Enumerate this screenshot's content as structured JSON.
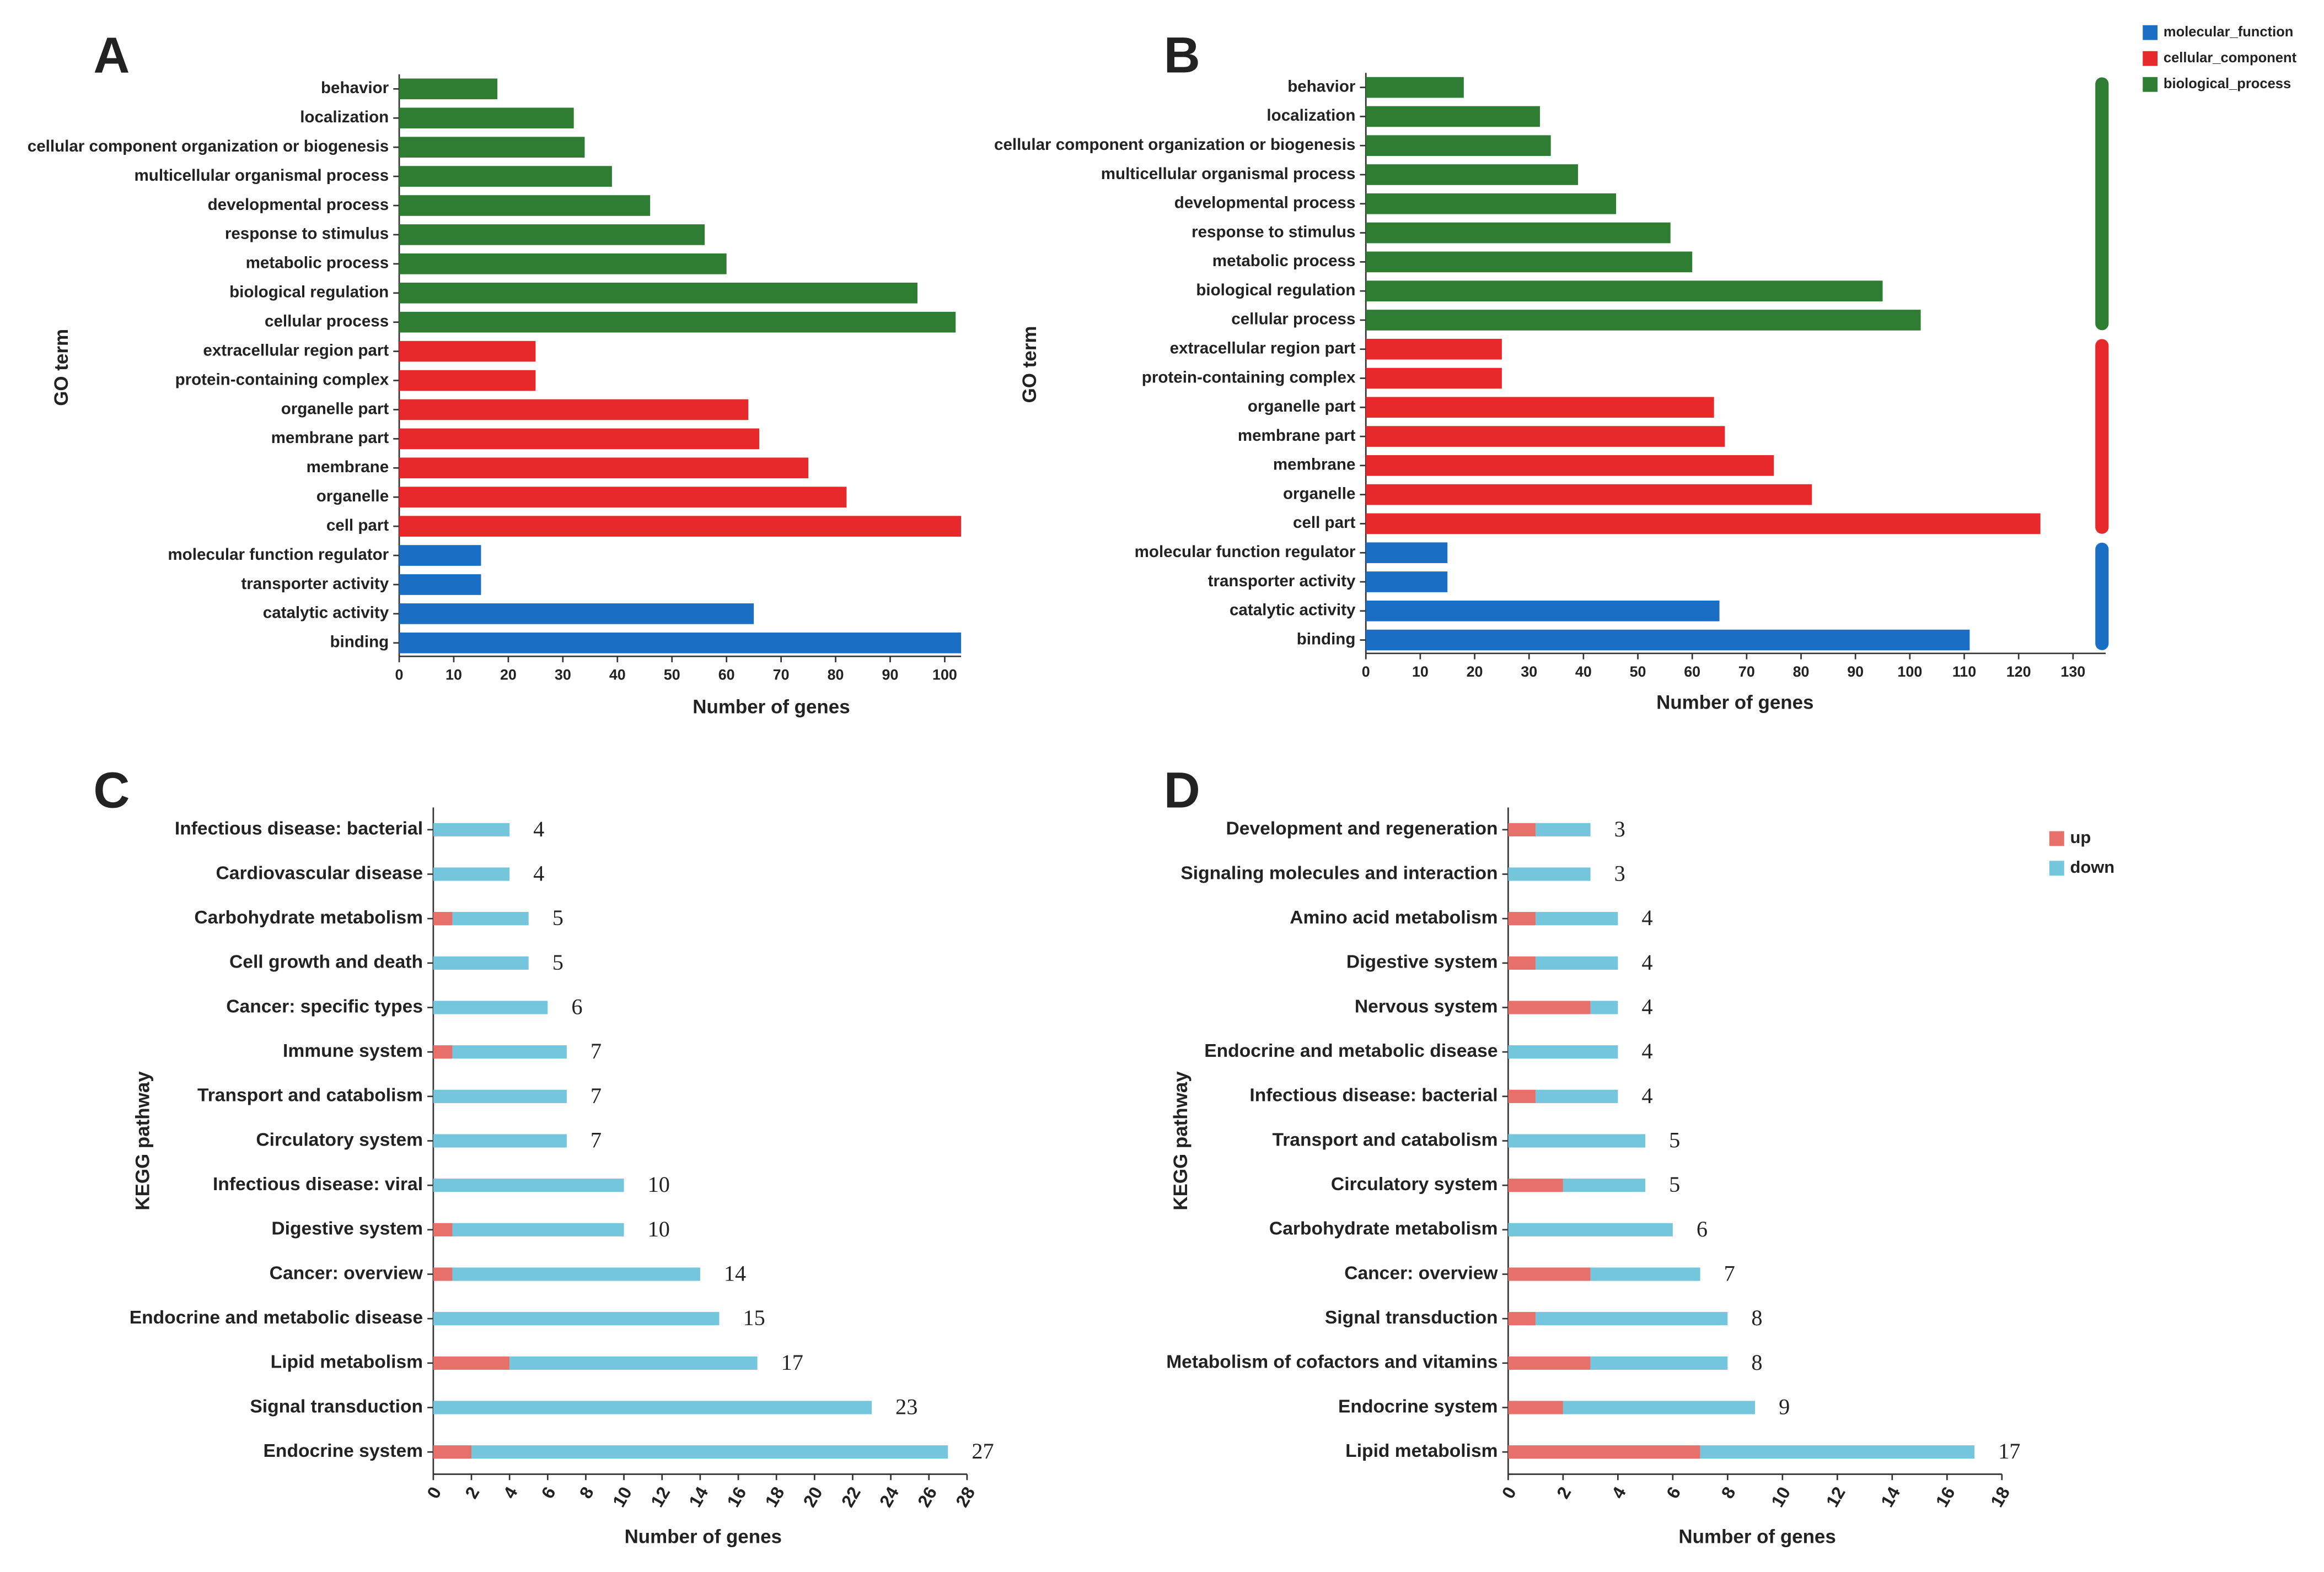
{
  "chart_data": [
    {
      "type": "bar",
      "orientation": "horizontal",
      "panel": "A",
      "ylabel": "GO term",
      "xlabel": "Number of genes",
      "categories": [
        "behavior",
        "localization",
        "cellular component organization or biogenesis",
        "multicellular organismal process",
        "developmental process",
        "response to stimulus",
        "metabolic process",
        "biological regulation",
        "cellular process",
        "extracellular region part",
        "protein-containing complex",
        "organelle part",
        "membrane part",
        "membrane",
        "organelle",
        "cell part",
        "molecular function regulator",
        "transporter activity",
        "catalytic activity",
        "binding"
      ],
      "values": [
        18,
        32,
        34,
        39,
        46,
        56,
        60,
        95,
        102,
        25,
        25,
        64,
        66,
        75,
        82,
        103,
        15,
        15,
        65,
        103
      ],
      "colors": [
        "#2e7d32",
        "#2e7d32",
        "#2e7d32",
        "#2e7d32",
        "#2e7d32",
        "#2e7d32",
        "#2e7d32",
        "#2e7d32",
        "#2e7d32",
        "#e8292b",
        "#e8292b",
        "#e8292b",
        "#e8292b",
        "#e8292b",
        "#e8292b",
        "#e8292b",
        "#1a6fc4",
        "#1a6fc4",
        "#1a6fc4",
        "#1a6fc4"
      ],
      "xlim": [
        0,
        103
      ],
      "xticks": [
        0,
        10,
        20,
        30,
        40,
        50,
        60,
        70,
        80,
        90,
        100
      ]
    },
    {
      "type": "bar",
      "orientation": "horizontal",
      "panel": "B",
      "ylabel": "GO term",
      "xlabel": "Number of genes",
      "categories": [
        "behavior",
        "localization",
        "cellular component organization or biogenesis",
        "multicellular organismal process",
        "developmental process",
        "response to stimulus",
        "metabolic process",
        "biological regulation",
        "cellular process",
        "extracellular region part",
        "protein-containing complex",
        "organelle part",
        "membrane part",
        "membrane",
        "organelle",
        "cell part",
        "molecular function regulator",
        "transporter activity",
        "catalytic activity",
        "binding"
      ],
      "values": [
        18,
        32,
        34,
        39,
        46,
        56,
        60,
        95,
        102,
        25,
        25,
        64,
        66,
        75,
        82,
        124,
        15,
        15,
        65,
        111
      ],
      "colors": [
        "#2e7d32",
        "#2e7d32",
        "#2e7d32",
        "#2e7d32",
        "#2e7d32",
        "#2e7d32",
        "#2e7d32",
        "#2e7d32",
        "#2e7d32",
        "#e8292b",
        "#e8292b",
        "#e8292b",
        "#e8292b",
        "#e8292b",
        "#e8292b",
        "#e8292b",
        "#1a6fc4",
        "#1a6fc4",
        "#1a6fc4",
        "#1a6fc4"
      ],
      "legend": [
        {
          "name": "molecular_function",
          "color": "#1a6fc4"
        },
        {
          "name": "cellular_component",
          "color": "#e8292b"
        },
        {
          "name": "biological_process",
          "color": "#2e7d32"
        }
      ],
      "xlim": [
        0,
        136
      ],
      "xticks": [
        0,
        10,
        20,
        30,
        40,
        50,
        60,
        70,
        80,
        90,
        100,
        110,
        120,
        130
      ]
    },
    {
      "type": "stacked_bar",
      "orientation": "horizontal",
      "panel": "C",
      "ylabel": "KEGG pathway",
      "xlabel": "Number of genes",
      "categories": [
        "Infectious disease: bacterial",
        "Cardiovascular disease",
        "Carbohydrate metabolism",
        "Cell growth and death",
        "Cancer: specific types",
        "Immune system",
        "Transport and catabolism",
        "Circulatory system",
        "Infectious disease: viral",
        "Digestive system",
        "Cancer: overview",
        "Endocrine and metabolic disease",
        "Lipid metabolism",
        "Signal transduction",
        "Endocrine system"
      ],
      "series": [
        {
          "name": "up",
          "color": "#e8706a",
          "values": [
            0,
            0,
            1,
            0,
            0,
            1,
            0,
            0,
            0,
            1,
            1,
            0,
            4,
            0,
            2
          ]
        },
        {
          "name": "down",
          "color": "#74c6dc",
          "values": [
            4,
            4,
            4,
            5,
            6,
            6,
            7,
            7,
            10,
            9,
            13,
            15,
            13,
            23,
            25
          ]
        }
      ],
      "totals": [
        4,
        4,
        5,
        5,
        6,
        7,
        7,
        7,
        10,
        10,
        14,
        15,
        17,
        23,
        27
      ],
      "xlim": [
        0,
        28
      ],
      "xticks": [
        0,
        2,
        4,
        6,
        8,
        10,
        12,
        14,
        16,
        18,
        20,
        22,
        24,
        26,
        28
      ]
    },
    {
      "type": "stacked_bar",
      "orientation": "horizontal",
      "panel": "D",
      "ylabel": "KEGG pathway",
      "xlabel": "Number of genes",
      "categories": [
        "Development and regeneration",
        "Signaling molecules and interaction",
        "Amino acid metabolism",
        "Digestive system",
        "Nervous system",
        "Endocrine and metabolic disease",
        "Infectious disease: bacterial",
        "Transport and catabolism",
        "Circulatory system",
        "Carbohydrate metabolism",
        "Cancer: overview",
        "Signal transduction",
        "Metabolism of cofactors and vitamins",
        "Endocrine system",
        "Lipid metabolism"
      ],
      "series": [
        {
          "name": "up",
          "color": "#e8706a",
          "values": [
            1,
            0,
            1,
            1,
            3,
            0,
            1,
            0,
            2,
            0,
            3,
            1,
            3,
            2,
            7
          ]
        },
        {
          "name": "down",
          "color": "#74c6dc",
          "values": [
            2,
            3,
            3,
            3,
            1,
            4,
            3,
            5,
            3,
            6,
            4,
            7,
            5,
            7,
            10
          ]
        }
      ],
      "totals": [
        3,
        3,
        4,
        4,
        4,
        4,
        4,
        5,
        5,
        6,
        7,
        8,
        8,
        9,
        17
      ],
      "legend": [
        {
          "name": "up",
          "color": "#e8706a"
        },
        {
          "name": "down",
          "color": "#74c6dc"
        }
      ],
      "xlim": [
        0,
        18
      ],
      "xticks": [
        0,
        2,
        4,
        6,
        8,
        10,
        12,
        14,
        16,
        18
      ]
    }
  ]
}
